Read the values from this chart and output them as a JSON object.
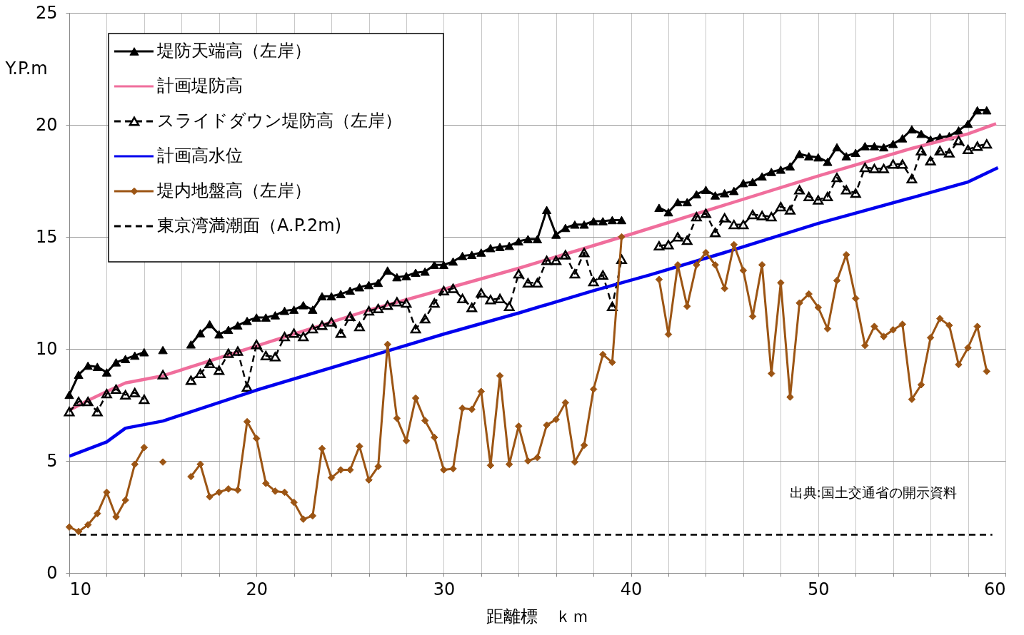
{
  "chart_data": {
    "type": "line",
    "xlabel": "距離標　ｋｍ",
    "ylabel": "Y.P.m",
    "xlim": [
      10,
      60
    ],
    "ylim": [
      0,
      25
    ],
    "xticks": [
      10,
      {
        "value": 12,
        "label": null
      },
      {
        "value": 14,
        "label": null
      },
      {
        "value": 16,
        "label": null
      },
      {
        "value": 18,
        "label": null
      },
      20,
      {
        "value": 22,
        "label": null
      },
      {
        "value": 24,
        "label": null
      },
      {
        "value": 26,
        "label": null
      },
      {
        "value": 28,
        "label": null
      },
      30,
      {
        "value": 32,
        "label": null
      },
      {
        "value": 34,
        "label": null
      },
      {
        "value": 36,
        "label": null
      },
      {
        "value": 38,
        "label": null
      },
      40,
      {
        "value": 42,
        "label": null
      },
      {
        "value": 44,
        "label": null
      },
      {
        "value": 46,
        "label": null
      },
      {
        "value": 48,
        "label": null
      },
      50,
      {
        "value": 52,
        "label": null
      },
      {
        "value": 54,
        "label": null
      },
      {
        "value": 56,
        "label": null
      },
      {
        "value": 58,
        "label": null
      },
      60
    ],
    "yticks": [
      0,
      5,
      10,
      15,
      20,
      25
    ],
    "grid": true,
    "legend": "top left",
    "annotations": [
      "出典:国土交通省の開示資料"
    ],
    "x": [
      10,
      10.5,
      11,
      11.5,
      12,
      12.5,
      13,
      13.5,
      14,
      14.5,
      15,
      15.5,
      16,
      16.5,
      17,
      17.5,
      18,
      18.5,
      19,
      19.5,
      20,
      20.5,
      21,
      21.5,
      22,
      22.5,
      23,
      23.5,
      24,
      24.5,
      25,
      25.5,
      26,
      26.5,
      27,
      27.5,
      28,
      28.5,
      29,
      29.5,
      30,
      30.5,
      31,
      31.5,
      32,
      32.5,
      33,
      33.5,
      34,
      34.5,
      35,
      35.5,
      36,
      36.5,
      37,
      37.5,
      38,
      38.5,
      39,
      39.5,
      40,
      40.5,
      41,
      41.5,
      42,
      42.5,
      43,
      43.5,
      44,
      44.5,
      45,
      45.5,
      46,
      46.5,
      47,
      47.5,
      48,
      48.5,
      49,
      49.5,
      50,
      50.5,
      51,
      51.5,
      52,
      52.5,
      53,
      53.5,
      54,
      54.5,
      55,
      55.5,
      56,
      56.5,
      57,
      57.5,
      58,
      58.5,
      59
    ],
    "series": [
      {
        "name": "堤防天端高（左岸）",
        "color": "#000000",
        "marker": "triangle",
        "line_style": "solid",
        "values": [
          7.95,
          8.85,
          9.25,
          9.2,
          8.95,
          9.4,
          9.55,
          9.7,
          9.85,
          null,
          9.95,
          null,
          null,
          10.2,
          10.7,
          11.1,
          10.65,
          10.85,
          11.05,
          11.25,
          11.4,
          11.4,
          11.5,
          11.7,
          11.75,
          11.95,
          11.75,
          12.35,
          12.35,
          12.45,
          12.6,
          12.75,
          12.85,
          12.95,
          13.5,
          13.2,
          13.25,
          13.4,
          13.45,
          13.75,
          13.75,
          13.9,
          14.15,
          14.2,
          14.3,
          14.5,
          14.55,
          14.6,
          14.8,
          14.9,
          14.9,
          16.2,
          15.1,
          15.4,
          15.55,
          15.55,
          15.7,
          15.7,
          15.75,
          15.75,
          null,
          null,
          null,
          16.3,
          16.1,
          16.55,
          16.55,
          16.9,
          17.1,
          16.85,
          16.95,
          17.05,
          17.4,
          17.45,
          17.7,
          17.9,
          18.0,
          18.15,
          18.7,
          18.6,
          18.55,
          18.35,
          19.0,
          18.6,
          18.75,
          19.05,
          19.05,
          19.0,
          19.15,
          19.4,
          19.8,
          19.6,
          19.35,
          19.45,
          19.5,
          19.75,
          20.05,
          20.65,
          20.65
        ]
      },
      {
        "name": "計画堤防高",
        "color": "#f06e9c",
        "marker": "none",
        "line_style": "solid",
        "x": [
          10,
          11,
          12,
          13,
          15,
          20,
          26,
          30,
          34,
          40,
          45,
          50,
          55,
          58,
          59.5
        ],
        "values": [
          7.26,
          7.7,
          8.1,
          8.48,
          8.8,
          10.13,
          11.73,
          12.66,
          13.6,
          15.12,
          16.42,
          17.72,
          18.95,
          19.6,
          20.05
        ]
      },
      {
        "name": "スライドダウン堤防高（左岸）",
        "color": "#000000",
        "marker": "triangle",
        "line_style": "dashed",
        "values": [
          7.2,
          7.65,
          7.65,
          7.2,
          8.0,
          8.2,
          7.95,
          8.05,
          7.75,
          null,
          8.85,
          null,
          null,
          8.6,
          8.9,
          9.35,
          9.05,
          9.8,
          9.9,
          8.3,
          10.2,
          9.7,
          9.65,
          10.55,
          10.7,
          10.55,
          10.9,
          11.05,
          11.2,
          10.7,
          11.45,
          11.0,
          11.7,
          11.8,
          11.95,
          12.1,
          12.05,
          10.9,
          11.35,
          12.05,
          12.6,
          12.7,
          12.25,
          11.85,
          12.5,
          12.2,
          12.25,
          11.9,
          13.35,
          12.95,
          12.95,
          13.95,
          13.95,
          14.2,
          13.35,
          14.3,
          13.0,
          13.3,
          11.9,
          14.0,
          null,
          null,
          null,
          14.6,
          14.65,
          15.0,
          14.85,
          15.9,
          16.05,
          15.2,
          15.85,
          15.55,
          15.55,
          16.0,
          15.95,
          15.9,
          16.35,
          16.2,
          17.1,
          16.8,
          16.65,
          16.8,
          17.65,
          17.1,
          16.95,
          18.1,
          18.05,
          18.05,
          18.25,
          18.25,
          17.6,
          18.85,
          18.4,
          18.85,
          18.75,
          19.3,
          18.9,
          19.05,
          19.15
        ]
      },
      {
        "name": "計画高水位",
        "color": "#0000ee",
        "marker": "none",
        "line_style": "solid",
        "x": [
          10,
          12,
          13,
          15,
          20,
          25,
          27,
          30,
          34,
          38,
          41,
          45,
          50,
          55,
          58,
          59.6
        ],
        "values": [
          5.21,
          5.85,
          6.46,
          6.78,
          8.16,
          9.41,
          9.91,
          10.66,
          11.6,
          12.6,
          13.3,
          14.3,
          15.6,
          16.75,
          17.45,
          18.09
        ]
      },
      {
        "name": "堤内地盤高（左岸）",
        "color": "#9c5514",
        "marker": "diamond",
        "line_style": "solid",
        "values": [
          2.05,
          1.85,
          2.15,
          2.65,
          3.6,
          2.5,
          3.25,
          4.85,
          5.6,
          null,
          4.95,
          null,
          null,
          4.3,
          4.85,
          3.4,
          3.6,
          3.75,
          3.7,
          6.75,
          6.0,
          4.0,
          3.65,
          3.6,
          3.15,
          2.4,
          2.55,
          5.55,
          4.25,
          4.6,
          4.6,
          5.65,
          4.15,
          4.75,
          10.2,
          6.9,
          5.9,
          7.8,
          6.8,
          6.05,
          4.6,
          4.65,
          7.35,
          7.3,
          8.1,
          4.8,
          8.8,
          4.85,
          6.55,
          5.0,
          5.15,
          6.6,
          6.85,
          7.6,
          4.95,
          5.7,
          8.2,
          9.75,
          9.4,
          15.0,
          null,
          null,
          null,
          13.1,
          10.65,
          13.75,
          11.9,
          13.75,
          14.3,
          13.75,
          12.7,
          14.65,
          13.5,
          11.45,
          13.75,
          8.9,
          12.95,
          7.85,
          12.05,
          12.45,
          11.85,
          10.9,
          13.05,
          14.2,
          12.25,
          10.15,
          11.0,
          10.55,
          10.85,
          11.1,
          7.75,
          8.4,
          10.5,
          11.35,
          11.05,
          9.3,
          10.05,
          11.0,
          9.0
        ]
      },
      {
        "name": "東京湾満潮面（A.P.2m)",
        "color": "#000000",
        "marker": "none",
        "line_style": "dashed",
        "x": [
          10,
          59.3
        ],
        "values": [
          1.7,
          1.7
        ]
      }
    ]
  }
}
